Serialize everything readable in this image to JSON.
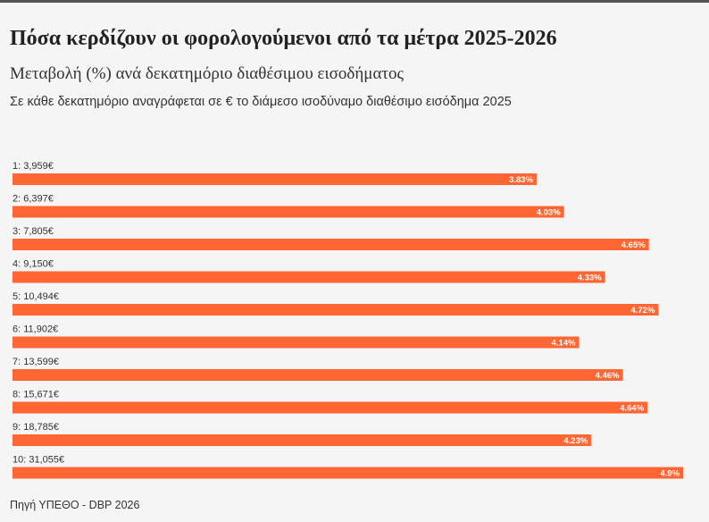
{
  "title": "Πόσα κερδίζουν οι φορολογούμενοι από τα μέτρα 2025-2026",
  "subtitle": "Μεταβολή (%) ανά δεκατημόριο διαθέσιμου εισοδήματος",
  "note": "Σε κάθε δεκατημόριο αναγράφεται σε € το διάμεσο ισοδύναμο διαθέσιμο εισόδημα 2025",
  "source": "Πηγή ΥΠΕΘΟ - DBP 2026",
  "colors": {
    "bar": "#ff6633",
    "background": "#f5f5f5",
    "topbar": "#555555"
  },
  "chart_data": {
    "type": "bar",
    "orientation": "horizontal",
    "title": "Πόσα κερδίζουν οι φορολογούμενοι από τα μέτρα 2025-2026",
    "xlabel": "",
    "ylabel": "",
    "xlim": [
      0,
      4.9
    ],
    "grid": false,
    "categories": [
      "1: 3,959€",
      "2: 6,397€",
      "3: 7,805€",
      "4: 9,150€",
      "5: 10,494€",
      "6: 11,902€",
      "7: 13,599€",
      "8: 15,671€",
      "9: 18,785€",
      "10: 31,055€"
    ],
    "values": [
      3.83,
      4.03,
      4.65,
      4.33,
      4.72,
      4.14,
      4.46,
      4.64,
      4.23,
      4.9
    ],
    "value_labels": [
      "3.83%",
      "4.03%",
      "4.65%",
      "4.33%",
      "4.72%",
      "4.14%",
      "4.46%",
      "4.64%",
      "4.23%",
      "4.9%"
    ]
  }
}
